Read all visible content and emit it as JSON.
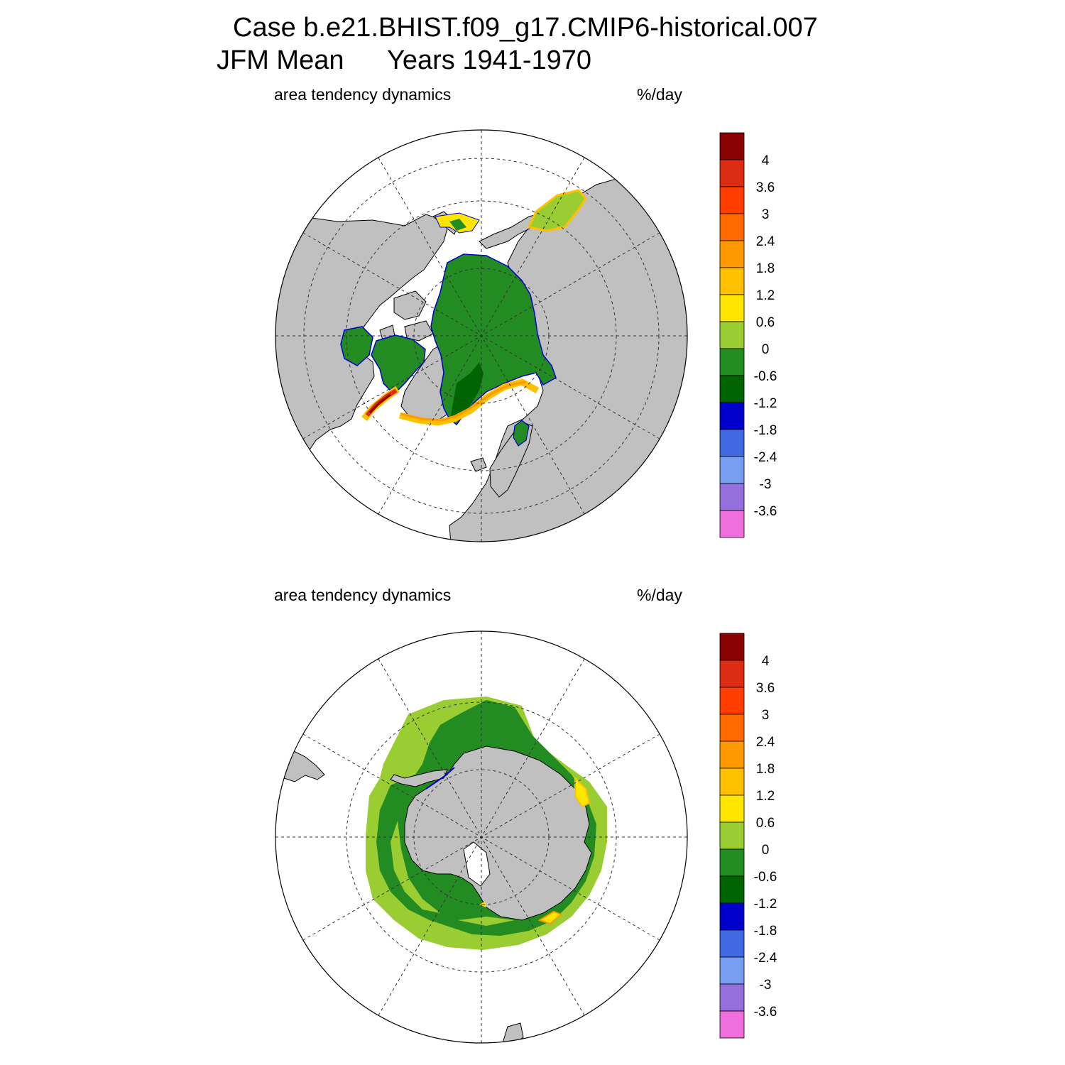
{
  "header": {
    "case_title": "Case b.e21.BHIST.f09_g17.CMIP6-historical.007",
    "season": "JFM Mean",
    "years": "Years 1941-1970"
  },
  "panels": [
    {
      "variable": "area tendency dynamics",
      "units": "%/day",
      "hemisphere": "north-polar-stereographic"
    },
    {
      "variable": "area tendency dynamics",
      "units": "%/day",
      "hemisphere": "south-polar-stereographic"
    }
  ],
  "colorbar": {
    "labels": [
      "4",
      "3.6",
      "3",
      "2.4",
      "1.8",
      "1.2",
      "0.6",
      "0",
      "-0.6",
      "-1.2",
      "-1.8",
      "-2.4",
      "-3",
      "-3.6"
    ],
    "colors": [
      "#8b0000",
      "#dd2c14",
      "#ff3d00",
      "#ff6a00",
      "#ff9900",
      "#ffc000",
      "#ffe600",
      "#9acd32",
      "#228b22",
      "#006400",
      "#0000cd",
      "#4169e1",
      "#779ef0",
      "#9370db",
      "#ee6fdd"
    ]
  },
  "map_colors": {
    "land": "#c0c0c0",
    "ocean": "#ffffff",
    "ice_green": "#228b22",
    "ice_dark_green": "#006400",
    "ice_light_green": "#9acd32",
    "ice_yellow": "#ffe600"
  }
}
